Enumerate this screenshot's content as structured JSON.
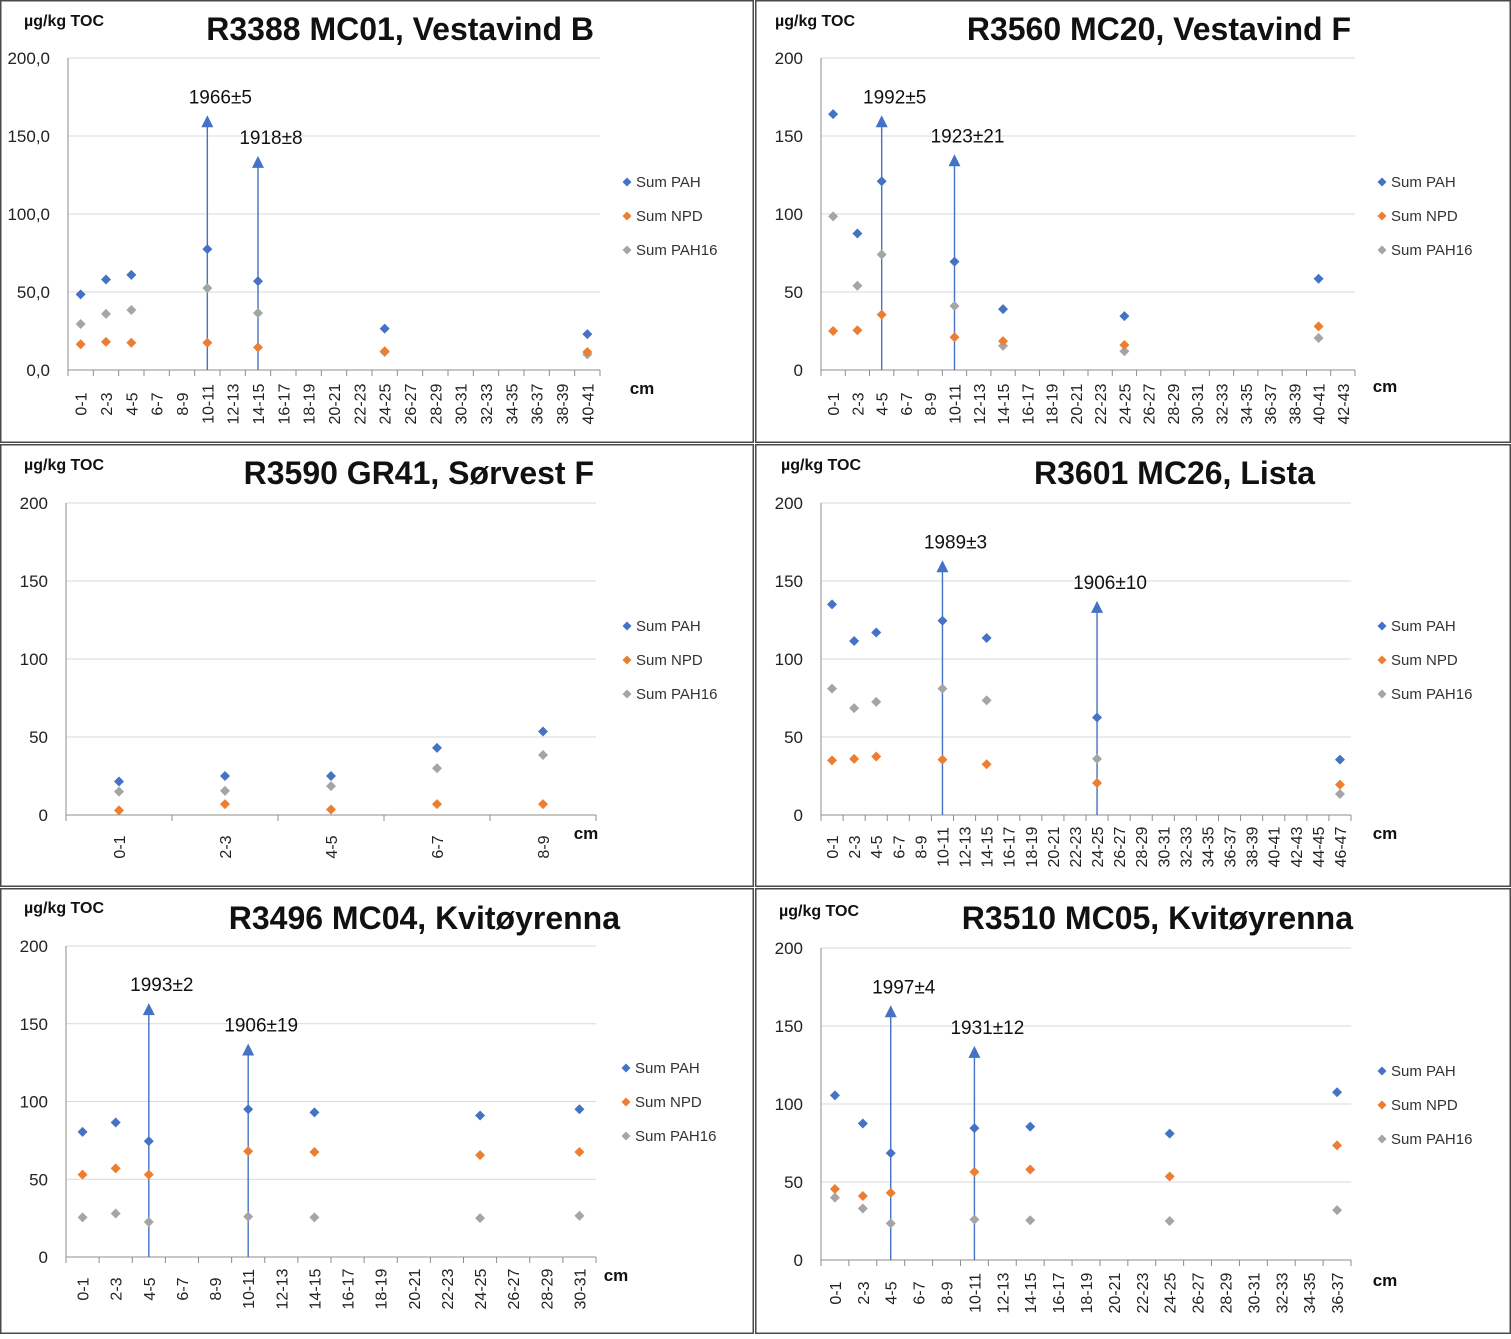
{
  "legend": [
    {
      "name": "Sum PAH",
      "color": "#4472C4"
    },
    {
      "name": "Sum NPD",
      "color": "#ED7D31"
    },
    {
      "name": "Sum PAH16",
      "color": "#A5A5A5"
    }
  ],
  "marker_color": "#4472C4",
  "chart_data": [
    {
      "type": "scatter",
      "title": "R3388 MC01, Vestavind B",
      "ylabel": "µg/kg TOC",
      "xlabel": "cm",
      "ylim": [
        0,
        200
      ],
      "yticks": [
        "0,0",
        "50,0",
        "100,0",
        "150,0",
        "200,0"
      ],
      "categories": [
        "0-1",
        "2-3",
        "4-5",
        "6-7",
        "8-9",
        "10-11",
        "12-13",
        "14-15",
        "16-17",
        "18-19",
        "20-21",
        "22-23",
        "24-25",
        "26-27",
        "28-29",
        "30-31",
        "32-33",
        "34-35",
        "36-37",
        "38-39",
        "40-41"
      ],
      "series": [
        {
          "name": "Sum PAH",
          "points": [
            [
              "0-1",
              48.5
            ],
            [
              "2-3",
              58
            ],
            [
              "4-5",
              61
            ],
            [
              "10-11",
              77.5
            ],
            [
              "14-15",
              57
            ],
            [
              "24-25",
              26.5
            ],
            [
              "40-41",
              23
            ]
          ]
        },
        {
          "name": "Sum NPD",
          "points": [
            [
              "0-1",
              16.5
            ],
            [
              "2-3",
              18
            ],
            [
              "4-5",
              17.5
            ],
            [
              "10-11",
              17.5
            ],
            [
              "14-15",
              14.5
            ],
            [
              "24-25",
              12
            ],
            [
              "40-41",
              11.5
            ]
          ]
        },
        {
          "name": "Sum PAH16",
          "points": [
            [
              "0-1",
              29.5
            ],
            [
              "2-3",
              36
            ],
            [
              "4-5",
              38.5
            ],
            [
              "10-11",
              52.5
            ],
            [
              "14-15",
              36.5
            ],
            [
              "24-25",
              11.5
            ],
            [
              "40-41",
              10
            ]
          ]
        }
      ],
      "annotations": [
        {
          "category": "10-11",
          "value": 162,
          "label": "1966±5"
        },
        {
          "category": "14-15",
          "value": 136,
          "label": "1918±8"
        }
      ]
    },
    {
      "type": "scatter",
      "title": "R3560 MC20, Vestavind F",
      "ylabel": "µg/kg TOC",
      "xlabel": "cm",
      "ylim": [
        0,
        200
      ],
      "yticks": [
        "0",
        "50",
        "100",
        "150",
        "200"
      ],
      "categories": [
        "0-1",
        "2-3",
        "4-5",
        "6-7",
        "8-9",
        "10-11",
        "12-13",
        "14-15",
        "16-17",
        "18-19",
        "20-21",
        "22-23",
        "24-25",
        "26-27",
        "28-29",
        "30-31",
        "32-33",
        "34-35",
        "36-37",
        "38-39",
        "40-41",
        "42-43"
      ],
      "series": [
        {
          "name": "Sum PAH",
          "points": [
            [
              "0-1",
              164
            ],
            [
              "2-3",
              87.5
            ],
            [
              "4-5",
              121
            ],
            [
              "10-11",
              69.5
            ],
            [
              "14-15",
              39
            ],
            [
              "24-25",
              34.5
            ],
            [
              "40-41",
              58.5
            ]
          ]
        },
        {
          "name": "Sum NPD",
          "points": [
            [
              "0-1",
              25
            ],
            [
              "2-3",
              25.5
            ],
            [
              "4-5",
              35.5
            ],
            [
              "10-11",
              21
            ],
            [
              "14-15",
              18.5
            ],
            [
              "24-25",
              16
            ],
            [
              "40-41",
              28
            ]
          ]
        },
        {
          "name": "Sum PAH16",
          "points": [
            [
              "0-1",
              98.5
            ],
            [
              "2-3",
              54
            ],
            [
              "4-5",
              74
            ],
            [
              "10-11",
              41
            ],
            [
              "14-15",
              15.5
            ],
            [
              "24-25",
              12
            ],
            [
              "40-41",
              20.5
            ]
          ]
        }
      ],
      "annotations": [
        {
          "category": "4-5",
          "value": 162,
          "label": "1992±5"
        },
        {
          "category": "10-11",
          "value": 137,
          "label": "1923±21"
        }
      ]
    },
    {
      "type": "scatter",
      "title": "R3590 GR41, Sørvest F",
      "ylabel": "µg/kg TOC",
      "xlabel": "cm",
      "ylim": [
        0,
        200
      ],
      "yticks": [
        "0",
        "50",
        "100",
        "150",
        "200"
      ],
      "categories": [
        "0-1",
        "2-3",
        "4-5",
        "6-7",
        "8-9"
      ],
      "series": [
        {
          "name": "Sum PAH",
          "points": [
            [
              "0-1",
              21.5
            ],
            [
              "2-3",
              25
            ],
            [
              "4-5",
              25
            ],
            [
              "6-7",
              43
            ],
            [
              "8-9",
              53.5
            ]
          ]
        },
        {
          "name": "Sum NPD",
          "points": [
            [
              "0-1",
              3
            ],
            [
              "2-3",
              7
            ],
            [
              "4-5",
              3.5
            ],
            [
              "6-7",
              7
            ],
            [
              "8-9",
              7
            ]
          ]
        },
        {
          "name": "Sum PAH16",
          "points": [
            [
              "0-1",
              15
            ],
            [
              "2-3",
              15.5
            ],
            [
              "4-5",
              18.5
            ],
            [
              "6-7",
              30
            ],
            [
              "8-9",
              38.5
            ]
          ]
        }
      ],
      "annotations": []
    },
    {
      "type": "scatter",
      "title": "R3601 MC26, Lista",
      "ylabel": "µg/kg TOC",
      "xlabel": "cm",
      "ylim": [
        0,
        200
      ],
      "yticks": [
        "0",
        "50",
        "100",
        "150",
        "200"
      ],
      "categories": [
        "0-1",
        "2-3",
        "4-5",
        "6-7",
        "8-9",
        "10-11",
        "12-13",
        "14-15",
        "16-17",
        "18-19",
        "20-21",
        "22-23",
        "24-25",
        "26-27",
        "28-29",
        "30-31",
        "32-33",
        "34-35",
        "36-37",
        "38-39",
        "40-41",
        "42-43",
        "44-45",
        "46-47"
      ],
      "series": [
        {
          "name": "Sum PAH",
          "points": [
            [
              "0-1",
              135
            ],
            [
              "2-3",
              111.5
            ],
            [
              "4-5",
              117
            ],
            [
              "10-11",
              124.5
            ],
            [
              "14-15",
              113.5
            ],
            [
              "24-25",
              62.5
            ],
            [
              "46-47",
              35.5
            ]
          ]
        },
        {
          "name": "Sum NPD",
          "points": [
            [
              "0-1",
              35
            ],
            [
              "2-3",
              36
            ],
            [
              "4-5",
              37.5
            ],
            [
              "10-11",
              35.5
            ],
            [
              "14-15",
              32.5
            ],
            [
              "24-25",
              20.5
            ],
            [
              "46-47",
              19.5
            ]
          ]
        },
        {
          "name": "Sum PAH16",
          "points": [
            [
              "0-1",
              81
            ],
            [
              "2-3",
              68.5
            ],
            [
              "4-5",
              72.5
            ],
            [
              "10-11",
              81
            ],
            [
              "14-15",
              73.5
            ],
            [
              "24-25",
              36
            ],
            [
              "46-47",
              13.5
            ]
          ]
        }
      ],
      "annotations": [
        {
          "category": "10-11",
          "value": 162,
          "label": "1989±3"
        },
        {
          "category": "24-25",
          "value": 136,
          "label": "1906±10"
        }
      ]
    },
    {
      "type": "scatter",
      "title": "R3496 MC04, Kvitøyrenna",
      "ylabel": "µg/kg TOC",
      "xlabel": "cm",
      "ylim": [
        0,
        200
      ],
      "yticks": [
        "0",
        "50",
        "100",
        "150",
        "200"
      ],
      "categories": [
        "0-1",
        "2-3",
        "4-5",
        "6-7",
        "8-9",
        "10-11",
        "12-13",
        "14-15",
        "16-17",
        "18-19",
        "20-21",
        "22-23",
        "24-25",
        "26-27",
        "28-29",
        "30-31"
      ],
      "series": [
        {
          "name": "Sum PAH",
          "points": [
            [
              "0-1",
              80.5
            ],
            [
              "2-3",
              86.5
            ],
            [
              "4-5",
              74.5
            ],
            [
              "10-11",
              95
            ],
            [
              "14-15",
              93
            ],
            [
              "24-25",
              91
            ],
            [
              "30-31",
              95
            ]
          ]
        },
        {
          "name": "Sum NPD",
          "points": [
            [
              "0-1",
              53
            ],
            [
              "2-3",
              57
            ],
            [
              "4-5",
              53
            ],
            [
              "10-11",
              68
            ],
            [
              "14-15",
              67.5
            ],
            [
              "24-25",
              65.5
            ],
            [
              "30-31",
              67.5
            ]
          ]
        },
        {
          "name": "Sum PAH16",
          "points": [
            [
              "0-1",
              25.5
            ],
            [
              "2-3",
              28
            ],
            [
              "4-5",
              22.5
            ],
            [
              "10-11",
              26
            ],
            [
              "14-15",
              25.5
            ],
            [
              "24-25",
              25
            ],
            [
              "30-31",
              26.5
            ]
          ]
        }
      ],
      "annotations": [
        {
          "category": "4-5",
          "value": 162,
          "label": "1993±2"
        },
        {
          "category": "10-11",
          "value": 136,
          "label": "1906±19"
        }
      ]
    },
    {
      "type": "scatter",
      "title": "R3510 MC05, Kvitøyrenna",
      "ylabel": "µg/kg TOC",
      "xlabel": "cm",
      "ylim": [
        0,
        200
      ],
      "yticks": [
        "0",
        "50",
        "100",
        "150",
        "200"
      ],
      "categories": [
        "0-1",
        "2-3",
        "4-5",
        "6-7",
        "8-9",
        "10-11",
        "12-13",
        "14-15",
        "16-17",
        "18-19",
        "20-21",
        "22-23",
        "24-25",
        "26-27",
        "28-29",
        "30-31",
        "32-33",
        "34-35",
        "36-37"
      ],
      "series": [
        {
          "name": "Sum PAH",
          "points": [
            [
              "0-1",
              105.5
            ],
            [
              "2-3",
              87.5
            ],
            [
              "4-5",
              68.5
            ],
            [
              "10-11",
              84.5
            ],
            [
              "14-15",
              85.5
            ],
            [
              "24-25",
              81
            ],
            [
              "36-37",
              107.5
            ]
          ]
        },
        {
          "name": "Sum NPD",
          "points": [
            [
              "0-1",
              45.5
            ],
            [
              "2-3",
              41
            ],
            [
              "4-5",
              43
            ],
            [
              "10-11",
              56.5
            ],
            [
              "14-15",
              58
            ],
            [
              "24-25",
              53.5
            ],
            [
              "36-37",
              73.5
            ]
          ]
        },
        {
          "name": "Sum PAH16",
          "points": [
            [
              "0-1",
              40
            ],
            [
              "2-3",
              33
            ],
            [
              "4-5",
              23.5
            ],
            [
              "10-11",
              26
            ],
            [
              "14-15",
              25.5
            ],
            [
              "24-25",
              25
            ],
            [
              "36-37",
              32
            ]
          ]
        }
      ],
      "annotations": [
        {
          "category": "4-5",
          "value": 162,
          "label": "1997±4"
        },
        {
          "category": "10-11",
          "value": 136,
          "label": "1931±12"
        }
      ]
    }
  ]
}
